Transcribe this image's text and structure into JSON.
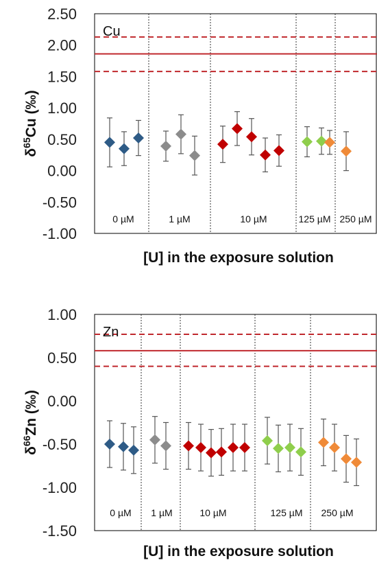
{
  "chart_data": [
    {
      "type": "scatter",
      "panel_label": "Cu",
      "ylabel_main": "δ",
      "ylabel_sup": "65",
      "ylabel_rest": "Cu (‰)",
      "xlabel": "[U] in the exposure solution",
      "ylim": [
        -1.0,
        2.5
      ],
      "ytick_labels": [
        "2.50",
        "2.00",
        "1.50",
        "1.00",
        "0.50",
        "0.00",
        "-0.50",
        "-1.00"
      ],
      "ytick_values": [
        2.5,
        2.0,
        1.5,
        1.0,
        0.5,
        0.0,
        -0.5,
        -1.0
      ],
      "reference": {
        "mean": 1.86,
        "upper": 2.13,
        "lower": 1.58,
        "color": "#c0282d"
      },
      "groups": [
        {
          "label": "0 µM",
          "color": "#2e5b86",
          "points": [
            {
              "value": 0.45,
              "err": 0.39
            },
            {
              "value": 0.35,
              "err": 0.27
            },
            {
              "value": 0.52,
              "err": 0.28
            }
          ]
        },
        {
          "label": "1 µM",
          "color": "#8c8c8c",
          "points": [
            {
              "value": 0.39,
              "err": 0.24
            },
            {
              "value": 0.58,
              "err": 0.31
            },
            {
              "value": 0.24,
              "err": 0.31
            }
          ]
        },
        {
          "label": "10 µM",
          "color": "#c00000",
          "points": [
            {
              "value": 0.42,
              "err": 0.29
            },
            {
              "value": 0.67,
              "err": 0.27
            },
            {
              "value": 0.54,
              "err": 0.29
            },
            {
              "value": 0.25,
              "err": 0.27
            },
            {
              "value": 0.32,
              "err": 0.25
            }
          ]
        },
        {
          "label": "125 µM",
          "color": "#8fce4c",
          "points": [
            {
              "value": 0.46,
              "err": 0.24
            },
            {
              "value": 0.47,
              "err": 0.21
            }
          ]
        },
        {
          "label": "250 µM",
          "color": "#ef8a38",
          "points": [
            {
              "value": 0.45,
              "err": 0.19
            },
            {
              "value": 0.31,
              "err": 0.31
            }
          ]
        }
      ]
    },
    {
      "type": "scatter",
      "panel_label": "Zn",
      "ylabel_main": "δ",
      "ylabel_sup": "66",
      "ylabel_rest": "Zn (‰)",
      "xlabel": "[U] in the exposure solution",
      "ylim": [
        -1.5,
        1.0
      ],
      "ytick_labels": [
        "1.00",
        "0.50",
        "0.00",
        "-0.50",
        "-1.00",
        "-1.50"
      ],
      "ytick_values": [
        1.0,
        0.5,
        0.0,
        -0.5,
        -1.0,
        -1.5
      ],
      "reference": {
        "mean": 0.58,
        "upper": 0.77,
        "lower": 0.4,
        "color": "#c0282d"
      },
      "groups": [
        {
          "label": "0 µM",
          "color": "#2e5b86",
          "points": [
            {
              "value": -0.5,
              "err": 0.27
            },
            {
              "value": -0.53,
              "err": 0.27
            },
            {
              "value": -0.57,
              "err": 0.27
            }
          ]
        },
        {
          "label": "1 µM",
          "color": "#8c8c8c",
          "points": [
            {
              "value": -0.45,
              "err": 0.27
            },
            {
              "value": -0.52,
              "err": 0.27
            }
          ]
        },
        {
          "label": "10 µM",
          "color": "#c00000",
          "points": [
            {
              "value": -0.52,
              "err": 0.27
            },
            {
              "value": -0.54,
              "err": 0.27
            },
            {
              "value": -0.6,
              "err": 0.27
            },
            {
              "value": -0.59,
              "err": 0.27
            },
            {
              "value": -0.54,
              "err": 0.27
            },
            {
              "value": -0.54,
              "err": 0.27
            }
          ]
        },
        {
          "label": "125 µM",
          "color": "#8fce4c",
          "points": [
            {
              "value": -0.46,
              "err": 0.27
            },
            {
              "value": -0.55,
              "err": 0.27
            },
            {
              "value": -0.54,
              "err": 0.27
            },
            {
              "value": -0.59,
              "err": 0.27
            }
          ]
        },
        {
          "label": "250 µM",
          "color": "#ef8a38",
          "points": [
            {
              "value": -0.48,
              "err": 0.27
            },
            {
              "value": -0.54,
              "err": 0.27
            },
            {
              "value": -0.67,
              "err": 0.27
            },
            {
              "value": -0.71,
              "err": 0.27
            }
          ]
        }
      ]
    }
  ]
}
